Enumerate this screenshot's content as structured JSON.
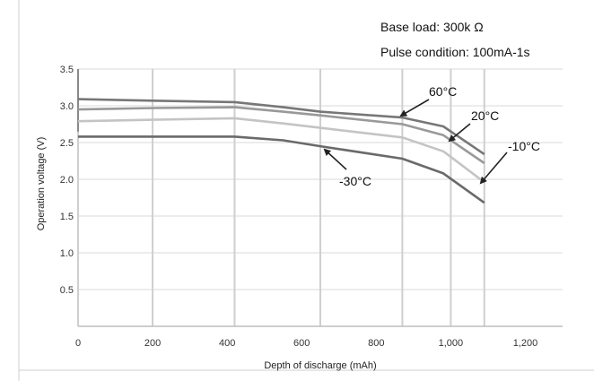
{
  "chart_data": {
    "type": "line",
    "xlabel": "Depth of discharge (mAh)",
    "ylabel": "Operation voltage (V)",
    "xlim": [
      0,
      1300
    ],
    "ylim": [
      0,
      3.5
    ],
    "x_ticks": [
      "0",
      "200",
      "400",
      "600",
      "800",
      "1,000",
      "1,200"
    ],
    "x_tick_values": [
      0,
      200,
      400,
      600,
      800,
      1000,
      1200
    ],
    "y_ticks": [
      "0.5",
      "1.0",
      "1.5",
      "2.0",
      "2.5",
      "3.0",
      "3.5"
    ],
    "y_tick_values": [
      0.5,
      1.0,
      1.5,
      2.0,
      2.5,
      3.0,
      3.5
    ],
    "vertical_grid_x": [
      0,
      200,
      420,
      650,
      870,
      1000,
      1090
    ],
    "annotations": {
      "base_load": "Base load: 300k  Ω",
      "pulse_condition": "Pulse condition:   100mA-1s"
    },
    "series": [
      {
        "name": "60°C",
        "color": "#777777",
        "x": [
          0,
          200,
          420,
          550,
          650,
          870,
          980,
          1090
        ],
        "y": [
          3.09,
          3.07,
          3.05,
          2.98,
          2.92,
          2.84,
          2.72,
          2.34
        ]
      },
      {
        "name": "20°C",
        "color": "#999999",
        "x": [
          0,
          200,
          420,
          550,
          650,
          870,
          980,
          1090
        ],
        "y": [
          2.95,
          2.97,
          2.98,
          2.92,
          2.87,
          2.75,
          2.6,
          2.22
        ]
      },
      {
        "name": "-10°C",
        "color": "#c4c4c4",
        "x": [
          0,
          200,
          420,
          550,
          650,
          870,
          980,
          1090
        ],
        "y": [
          2.79,
          2.81,
          2.83,
          2.76,
          2.7,
          2.57,
          2.38,
          1.96
        ]
      },
      {
        "name": "-30°C",
        "color": "#6a6a6a",
        "x": [
          0,
          200,
          420,
          550,
          650,
          870,
          980,
          1090
        ],
        "y": [
          2.58,
          2.58,
          2.58,
          2.53,
          2.45,
          2.28,
          2.08,
          1.68
        ]
      }
    ]
  }
}
